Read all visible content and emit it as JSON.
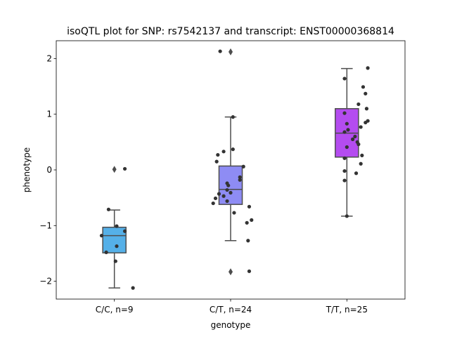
{
  "chart_data": {
    "type": "box",
    "title": "isoQTL plot for SNP: rs7542137 and transcript: ENST00000368814",
    "xlabel": "genotype",
    "ylabel": "phenotype",
    "ylim": [
      -2.32,
      2.32
    ],
    "yticks": [
      -2,
      -1,
      0,
      1,
      2
    ],
    "ytick_labels": [
      "−2",
      "−1",
      "0",
      "1",
      "2"
    ],
    "grid": false,
    "categories": [
      "C/C, n=9",
      "C/T, n=24",
      "T/T, n=25"
    ],
    "boxes": [
      {
        "category": "C/C, n=9",
        "color": "#55b0e8",
        "q1": -1.49,
        "median": -1.18,
        "q3": -1.03,
        "whisker_low": -2.12,
        "whisker_high": -0.72,
        "outliers": [
          0.01
        ]
      },
      {
        "category": "C/T, n=24",
        "color": "#8e8cf4",
        "q1": -0.62,
        "median": -0.35,
        "q3": 0.07,
        "whisker_low": -1.27,
        "whisker_high": 0.95,
        "outliers": [
          2.12,
          -1.83
        ]
      },
      {
        "category": "T/T, n=25",
        "color": "#b44cf0",
        "q1": 0.23,
        "median": 0.66,
        "q3": 1.1,
        "whisker_low": -0.83,
        "whisker_high": 1.82,
        "outliers": []
      }
    ],
    "points": [
      {
        "category": "C/C, n=9",
        "values": [
          0.02,
          -0.71,
          -1.01,
          -1.1,
          -1.18,
          -1.37,
          -1.48,
          -1.64,
          -2.12
        ],
        "jitter": [
          0.09,
          -0.05,
          0.02,
          0.09,
          -0.11,
          0.02,
          -0.07,
          0.01,
          0.16
        ]
      },
      {
        "category": "C/T, n=24",
        "values": [
          2.13,
          0.95,
          0.37,
          0.33,
          0.27,
          0.15,
          0.06,
          -0.13,
          -0.18,
          -0.24,
          -0.28,
          -0.36,
          -0.43,
          -0.47,
          -0.51,
          -0.56,
          -0.6,
          -0.66,
          -0.77,
          -0.9,
          -0.95,
          -1.27,
          -1.82,
          -0.41
        ],
        "jitter": [
          -0.09,
          0.02,
          0.02,
          -0.06,
          -0.11,
          -0.12,
          0.11,
          0.08,
          0.08,
          -0.03,
          -0.02,
          -0.03,
          -0.1,
          -0.06,
          -0.13,
          -0.03,
          -0.15,
          0.16,
          0.03,
          0.18,
          0.14,
          0.15,
          0.16,
          0.0
        ]
      },
      {
        "category": "T/T, n=25",
        "values": [
          1.83,
          1.64,
          1.49,
          1.37,
          1.18,
          1.1,
          1.02,
          0.88,
          0.83,
          0.77,
          0.72,
          0.68,
          0.6,
          0.55,
          0.5,
          0.46,
          0.41,
          0.26,
          0.21,
          0.11,
          -0.02,
          -0.06,
          -0.19,
          -0.83,
          0.85
        ],
        "jitter": [
          0.18,
          -0.02,
          0.14,
          0.16,
          0.1,
          0.17,
          -0.02,
          0.18,
          0.0,
          0.12,
          0.01,
          -0.02,
          0.07,
          0.05,
          0.09,
          0.1,
          0.0,
          0.13,
          -0.02,
          0.12,
          -0.02,
          0.08,
          -0.02,
          0.0,
          0.16
        ]
      }
    ]
  }
}
